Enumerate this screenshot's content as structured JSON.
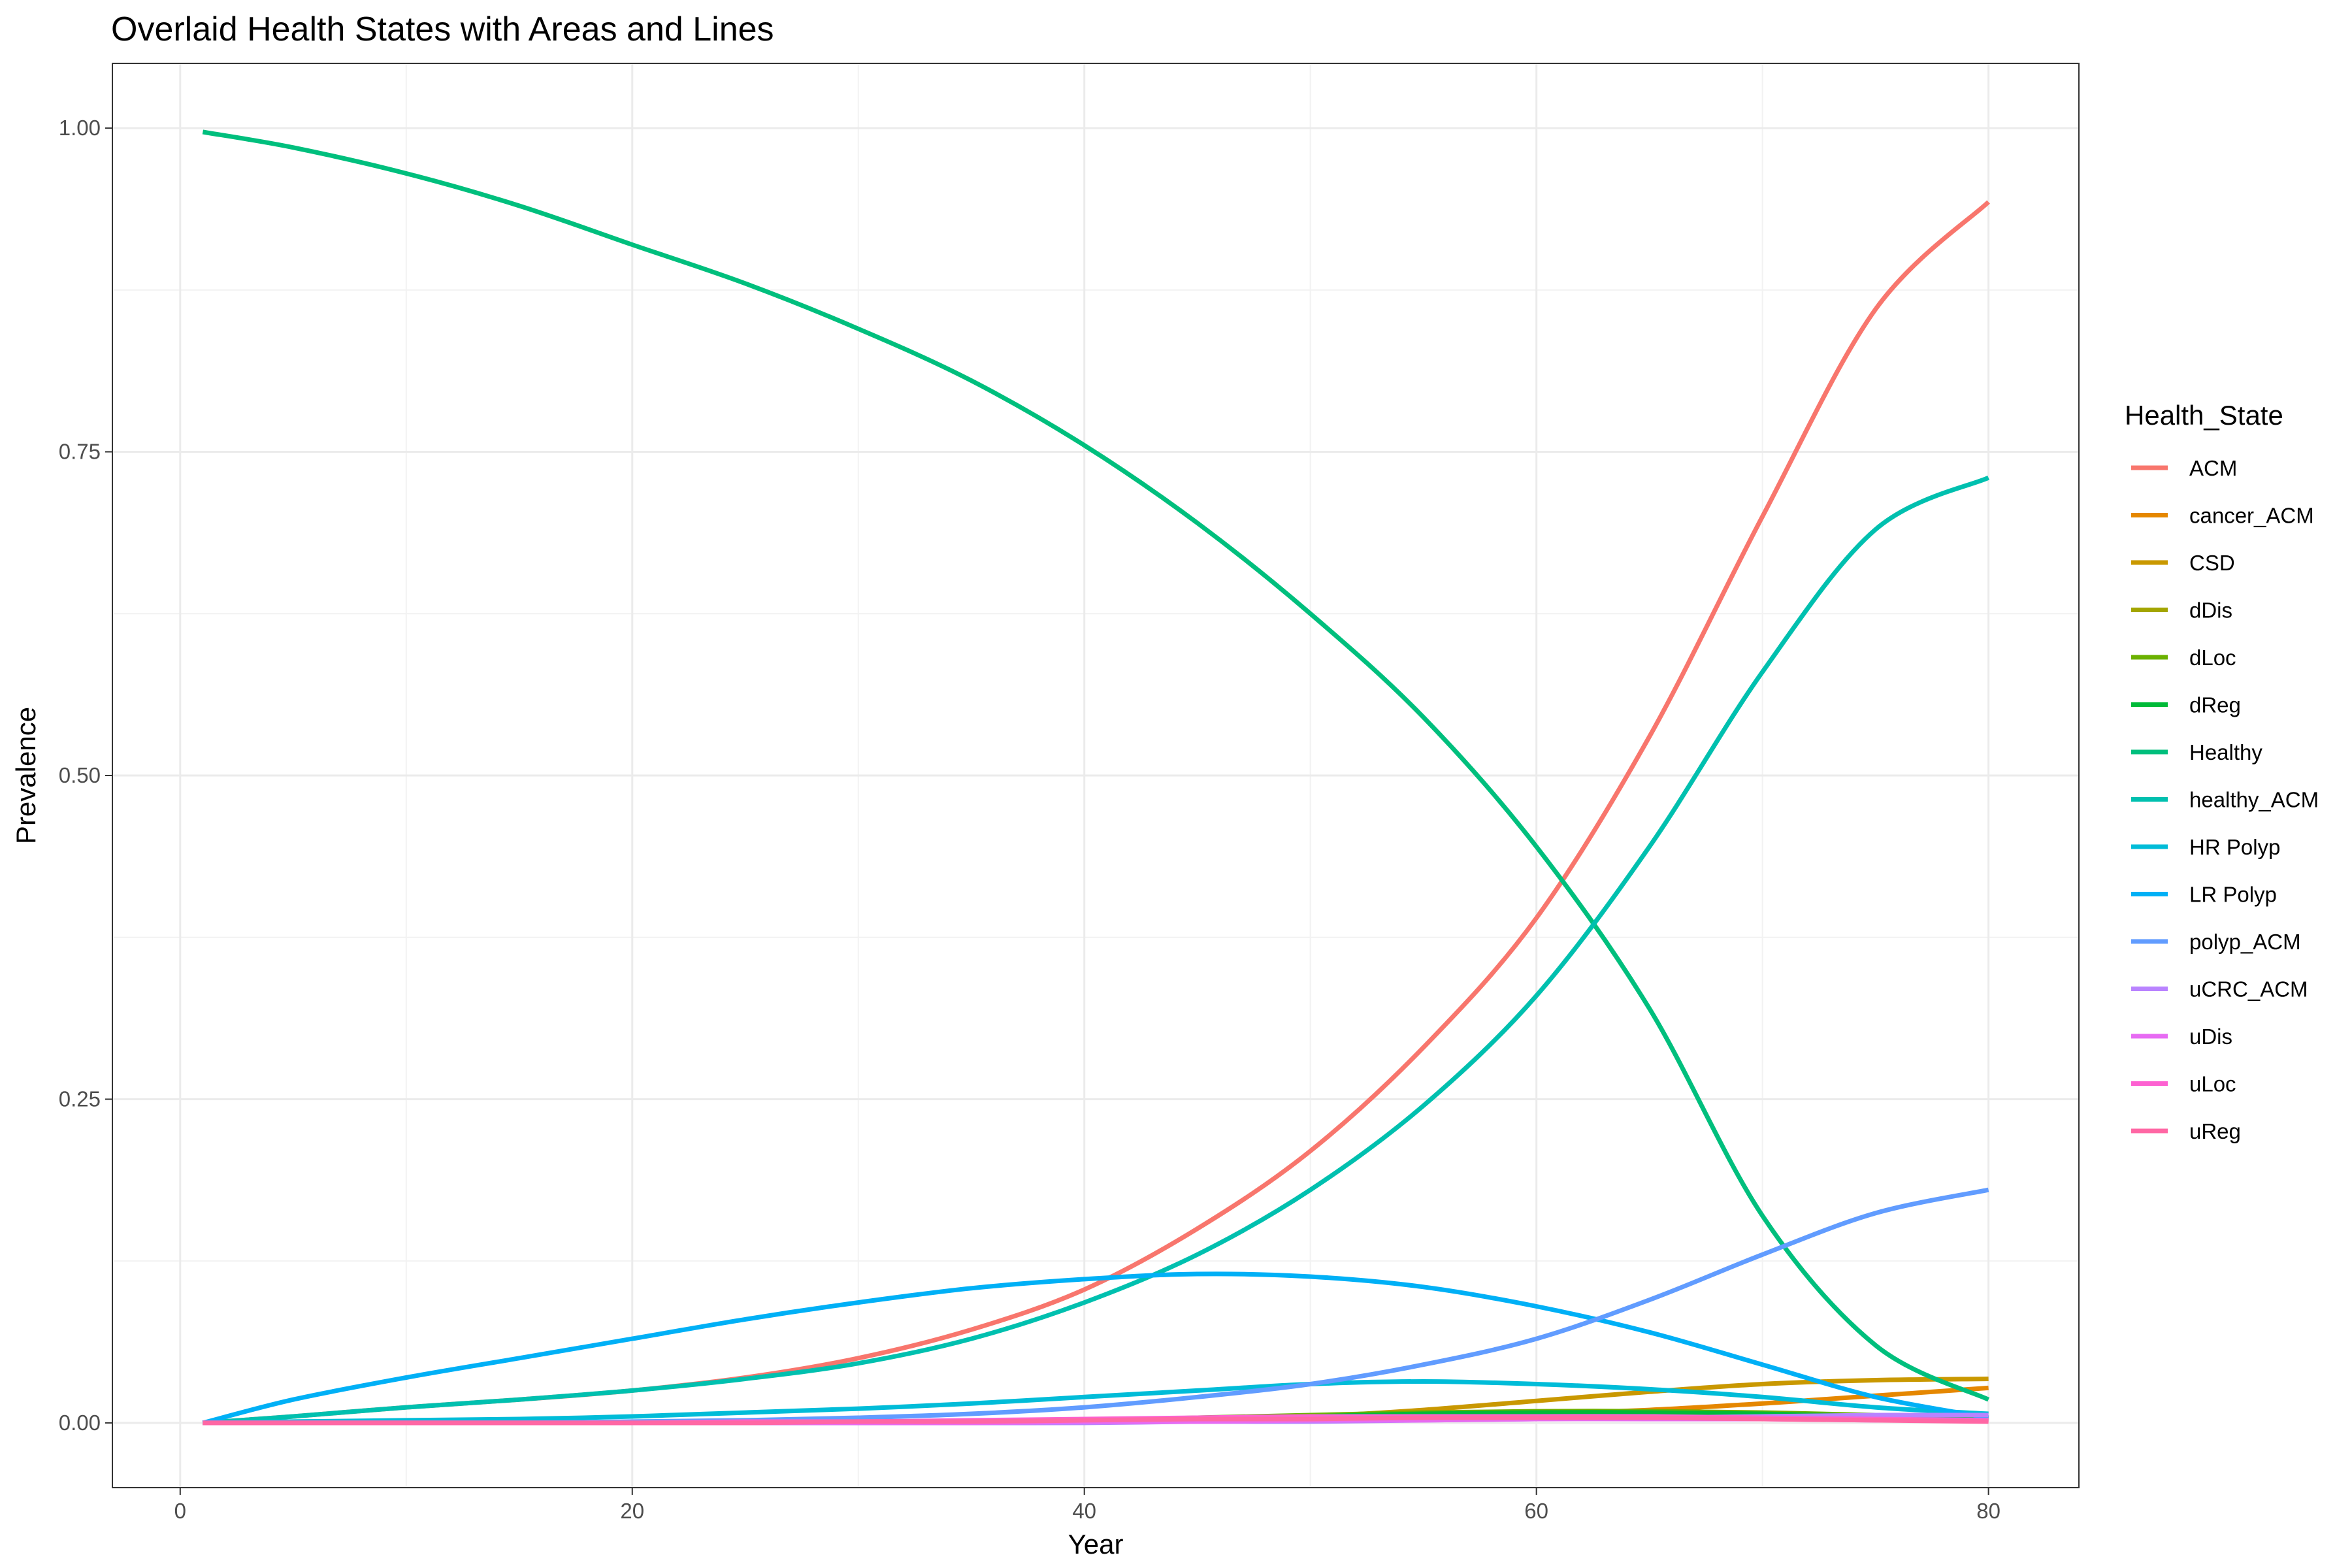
{
  "chart_data": {
    "type": "line",
    "title": "Overlaid Health States with Areas and Lines",
    "xlabel": "Year",
    "ylabel": "Prevalence",
    "xlim": [
      -3,
      84
    ],
    "ylim": [
      -0.05,
      1.05
    ],
    "x_ticks": [
      0,
      20,
      40,
      60,
      80
    ],
    "y_ticks": [
      0.0,
      0.25,
      0.5,
      0.75,
      1.0
    ],
    "x_tick_labels": [
      "0",
      "20",
      "40",
      "60",
      "80"
    ],
    "y_tick_labels": [
      "0.00",
      "0.25",
      "0.50",
      "0.75",
      "1.00"
    ],
    "grid": true,
    "legend": {
      "title": "Health_State",
      "position": "right"
    },
    "x": [
      1,
      5,
      10,
      15,
      20,
      25,
      30,
      35,
      40,
      45,
      50,
      55,
      60,
      65,
      70,
      75,
      80
    ],
    "series": [
      {
        "name": "ACM",
        "color": "#F8766D",
        "values": [
          0.0,
          0.005,
          0.012,
          0.018,
          0.025,
          0.035,
          0.05,
          0.072,
          0.103,
          0.15,
          0.21,
          0.29,
          0.39,
          0.53,
          0.7,
          0.86,
          0.943
        ]
      },
      {
        "name": "cancer_ACM",
        "color": "#E58700",
        "values": [
          0.0,
          0.0,
          0.0,
          0.0,
          0.0,
          0.0,
          0.0,
          0.0,
          0.001,
          0.002,
          0.003,
          0.005,
          0.007,
          0.01,
          0.015,
          0.021,
          0.027
        ]
      },
      {
        "name": "CSD",
        "color": "#C99800",
        "values": [
          0.0,
          0.0,
          0.0,
          0.0,
          0.0,
          0.0,
          0.0,
          0.001,
          0.001,
          0.003,
          0.005,
          0.01,
          0.017,
          0.024,
          0.03,
          0.033,
          0.034
        ]
      },
      {
        "name": "dDis",
        "color": "#A3A500",
        "values": [
          0.0,
          0.0,
          0.0,
          0.0,
          0.0,
          0.0,
          0.0,
          0.0,
          0.001,
          0.002,
          0.004,
          0.005,
          0.006,
          0.006,
          0.005,
          0.004,
          0.003
        ]
      },
      {
        "name": "dLoc",
        "color": "#6BB100",
        "values": [
          0.0,
          0.0,
          0.0,
          0.0,
          0.0,
          0.0,
          0.001,
          0.001,
          0.002,
          0.004,
          0.006,
          0.008,
          0.009,
          0.009,
          0.008,
          0.006,
          0.004
        ]
      },
      {
        "name": "dReg",
        "color": "#00BA38",
        "values": [
          0.0,
          0.0,
          0.0,
          0.0,
          0.0,
          0.0,
          0.0,
          0.001,
          0.002,
          0.003,
          0.005,
          0.007,
          0.008,
          0.008,
          0.007,
          0.005,
          0.004
        ]
      },
      {
        "name": "Healthy",
        "color": "#00BF7D",
        "values": [
          0.997,
          0.985,
          0.965,
          0.94,
          0.91,
          0.88,
          0.845,
          0.805,
          0.755,
          0.695,
          0.625,
          0.545,
          0.445,
          0.32,
          0.16,
          0.06,
          0.018
        ]
      },
      {
        "name": "healthy_ACM",
        "color": "#00C0AF",
        "values": [
          0.0,
          0.005,
          0.012,
          0.018,
          0.025,
          0.034,
          0.046,
          0.065,
          0.093,
          0.13,
          0.18,
          0.245,
          0.33,
          0.445,
          0.58,
          0.69,
          0.73
        ]
      },
      {
        "name": "HR Polyp",
        "color": "#00BCD8",
        "values": [
          0.0,
          0.001,
          0.002,
          0.003,
          0.005,
          0.008,
          0.011,
          0.015,
          0.02,
          0.025,
          0.03,
          0.032,
          0.03,
          0.026,
          0.02,
          0.012,
          0.007
        ]
      },
      {
        "name": "LR Polyp",
        "color": "#00B0F6",
        "values": [
          0.0,
          0.018,
          0.035,
          0.05,
          0.065,
          0.08,
          0.093,
          0.104,
          0.111,
          0.115,
          0.113,
          0.105,
          0.09,
          0.07,
          0.045,
          0.02,
          0.004
        ]
      },
      {
        "name": "polyp_ACM",
        "color": "#619CFF",
        "values": [
          0.0,
          0.0,
          0.0,
          0.0,
          0.001,
          0.002,
          0.004,
          0.007,
          0.012,
          0.02,
          0.03,
          0.045,
          0.065,
          0.095,
          0.13,
          0.162,
          0.18
        ]
      },
      {
        "name": "uCRC_ACM",
        "color": "#B983FF",
        "values": [
          0.0,
          0.0,
          0.0,
          0.0,
          0.0,
          0.0,
          0.0,
          0.0,
          0.0,
          0.001,
          0.001,
          0.002,
          0.003,
          0.004,
          0.005,
          0.006,
          0.006
        ]
      },
      {
        "name": "uDis",
        "color": "#E76BF3",
        "values": [
          0.0,
          0.0,
          0.0,
          0.0,
          0.0,
          0.0,
          0.0,
          0.0,
          0.001,
          0.001,
          0.002,
          0.002,
          0.003,
          0.003,
          0.003,
          0.002,
          0.002
        ]
      },
      {
        "name": "uLoc",
        "color": "#FD61D1",
        "values": [
          0.0,
          0.0,
          0.0,
          0.0,
          0.0,
          0.001,
          0.001,
          0.002,
          0.003,
          0.004,
          0.005,
          0.005,
          0.005,
          0.005,
          0.004,
          0.003,
          0.002
        ]
      },
      {
        "name": "uReg",
        "color": "#FF67A4",
        "values": [
          0.0,
          0.0,
          0.0,
          0.0,
          0.0,
          0.0,
          0.001,
          0.001,
          0.002,
          0.003,
          0.003,
          0.004,
          0.004,
          0.004,
          0.003,
          0.002,
          0.001
        ]
      }
    ]
  }
}
